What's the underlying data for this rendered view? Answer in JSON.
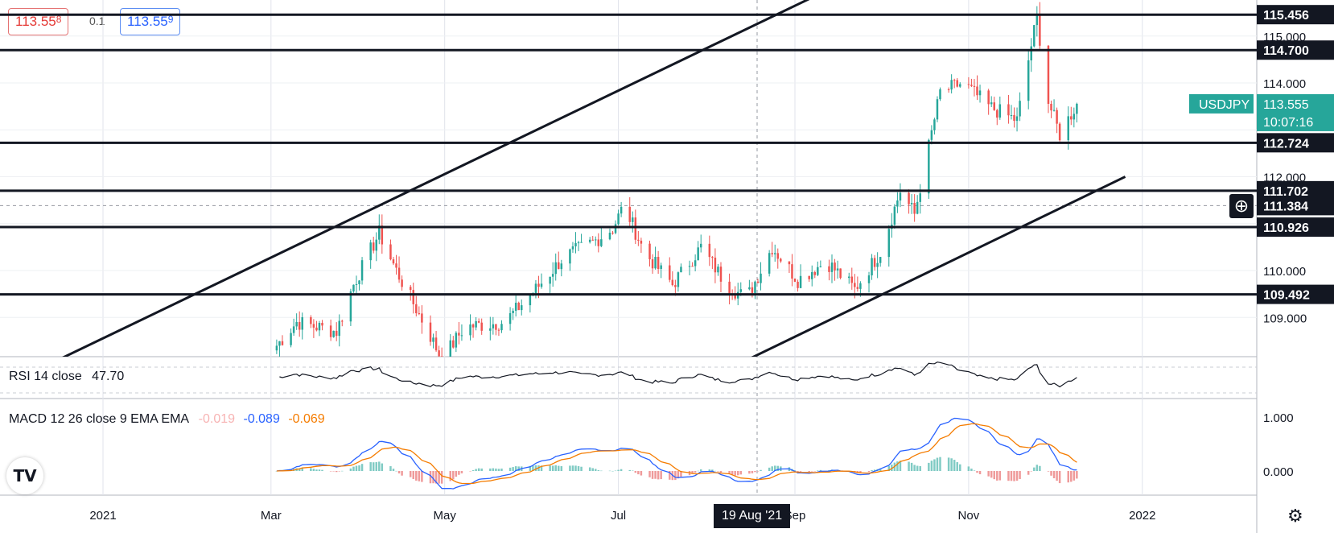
{
  "quote": {
    "bid_main": "113.55",
    "bid_frac": "8",
    "spread": "0.1",
    "ask_main": "113.55",
    "ask_frac": "9"
  },
  "indicators": {
    "rsi_label": "RSI 14 close",
    "rsi_value": "47.70",
    "macd_label": "MACD 12 26 close 9 EMA EMA",
    "macd_hist": "-0.019",
    "macd_line": "-0.089",
    "macd_signal": "-0.069"
  },
  "crosshair_date": "19 Aug '21",
  "symbol_label": "USDJPY",
  "last_price": "113.555",
  "countdown": "10:07:16",
  "crosshair_price": "111.384",
  "colors": {
    "up": "#26a69a",
    "down": "#ef5350",
    "tag_up": "#26a69a",
    "line": "#131722"
  },
  "chart_data": {
    "type": "candlestick",
    "symbol": "USDJPY",
    "y_ticks": [
      109.0,
      110.0,
      111.0,
      112.0,
      113.0,
      114.0,
      115.0
    ],
    "y_tick_labels": [
      "109.000",
      "110.000",
      "",
      "112.000",
      "",
      "114.000",
      "115.000"
    ],
    "x_ticks": [
      "2021",
      "Mar",
      "May",
      "Jul",
      "Sep",
      "Nov",
      "2022"
    ],
    "x_tick_dates": [
      "2021-01-01",
      "2021-03-01",
      "2021-05-01",
      "2021-07-01",
      "2021-09-01",
      "2021-11-01",
      "2022-01-01"
    ],
    "horizontal_levels": [
      115.456,
      114.7,
      112.724,
      111.702,
      110.926,
      109.492
    ],
    "horizontal_level_labels": [
      "115.456",
      "114.700",
      "112.724",
      "111.702",
      "110.926",
      "109.492"
    ],
    "trendlines": [
      {
        "start": [
          "2020-12-13",
          108.0
        ],
        "end": [
          "2021-09-20",
          116.2
        ]
      },
      {
        "start": [
          "2021-08-12",
          108.0
        ],
        "end": [
          "2021-12-26",
          112.0
        ]
      }
    ],
    "price_waypoints": [
      [
        "2021-03-03",
        108.4
      ],
      [
        "2021-03-10",
        108.9
      ],
      [
        "2021-03-24",
        108.7
      ],
      [
        "2021-03-30",
        109.7
      ],
      [
        "2021-04-08",
        110.8
      ],
      [
        "2021-04-14",
        110.0
      ],
      [
        "2021-04-26",
        108.6
      ],
      [
        "2021-04-30",
        108.1
      ],
      [
        "2021-05-08",
        108.8
      ],
      [
        "2021-05-22",
        108.9
      ],
      [
        "2021-06-02",
        109.6
      ],
      [
        "2021-06-12",
        110.3
      ],
      [
        "2021-06-22",
        110.6
      ],
      [
        "2021-06-29",
        110.9
      ],
      [
        "2021-07-03",
        111.4
      ],
      [
        "2021-07-10",
        110.4
      ],
      [
        "2021-07-20",
        109.7
      ],
      [
        "2021-07-30",
        110.5
      ],
      [
        "2021-08-08",
        109.7
      ],
      [
        "2021-08-15",
        109.4
      ],
      [
        "2021-08-24",
        110.5
      ],
      [
        "2021-09-02",
        109.8
      ],
      [
        "2021-09-12",
        110.2
      ],
      [
        "2021-09-22",
        109.6
      ],
      [
        "2021-10-01",
        110.4
      ],
      [
        "2021-10-08",
        111.7
      ],
      [
        "2021-10-13",
        111.2
      ],
      [
        "2021-10-22",
        113.8
      ],
      [
        "2021-10-30",
        114.0
      ],
      [
        "2021-11-08",
        113.5
      ],
      [
        "2021-11-18",
        113.2
      ],
      [
        "2021-11-23",
        114.8
      ],
      [
        "2021-11-25",
        115.4
      ],
      [
        "2021-11-29",
        113.6
      ],
      [
        "2021-12-03",
        112.9
      ],
      [
        "2021-12-09",
        113.555
      ]
    ],
    "rsi": {
      "period": 14,
      "last": 47.7
    },
    "macd": {
      "fast": 12,
      "slow": 26,
      "signal": 9,
      "histogram": -0.019,
      "macd": -0.089,
      "signal_value": -0.069,
      "y_ticks": [
        0.0,
        1.0
      ],
      "y_tick_labels": [
        "0.000",
        "1.000"
      ]
    }
  }
}
